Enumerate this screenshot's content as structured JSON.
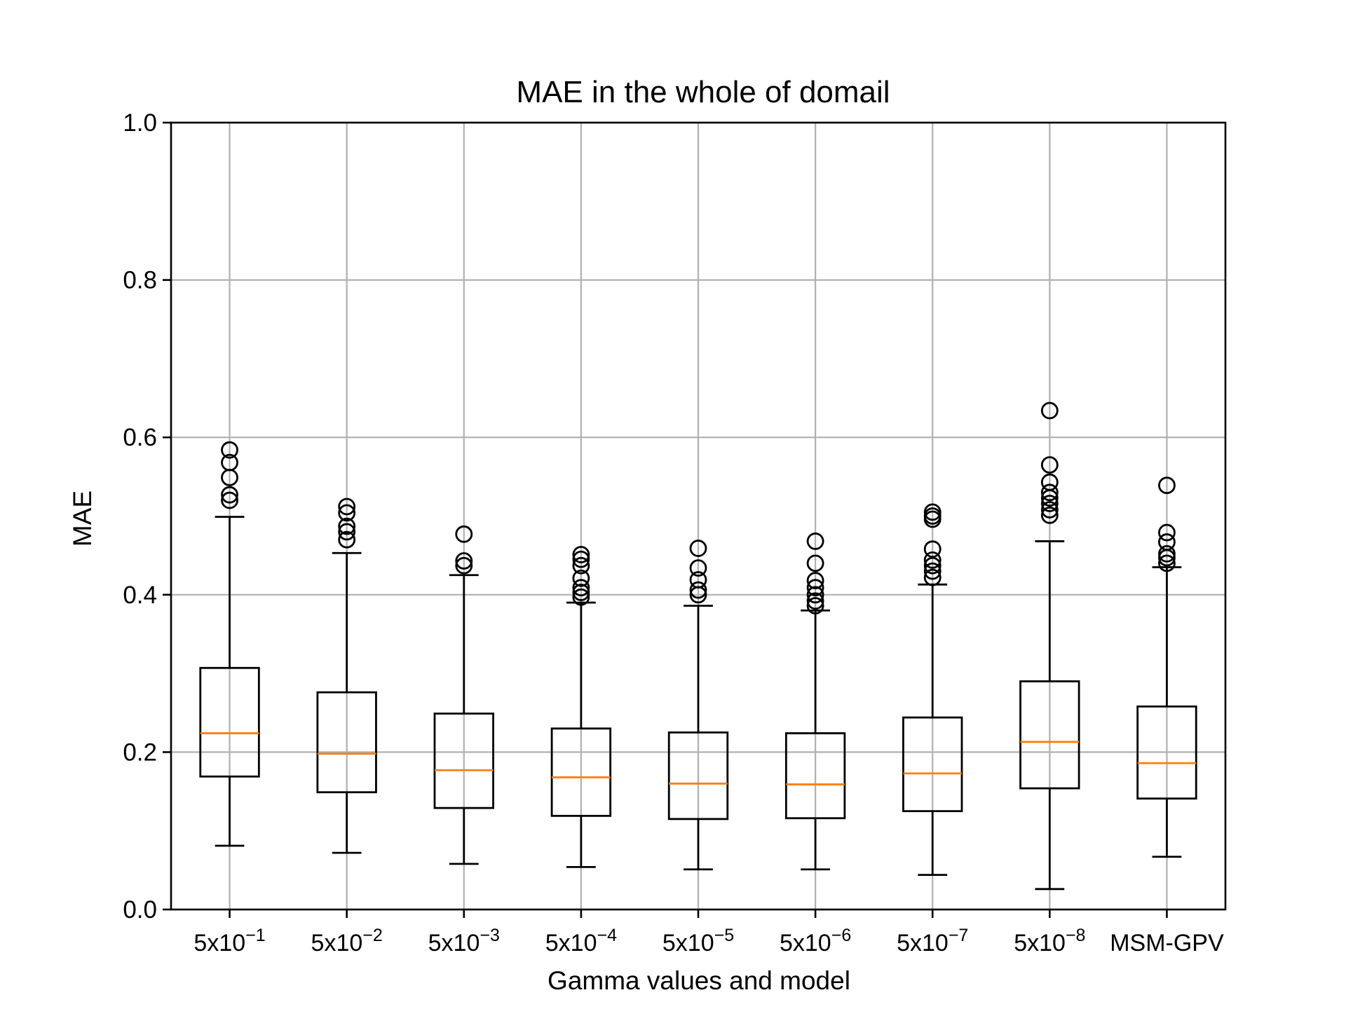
{
  "chart_data": {
    "type": "box",
    "title": "MAE in the whole of domail",
    "xlabel": "Gamma values and model",
    "ylabel": "MAE",
    "ylim": [
      0.0,
      1.0
    ],
    "yticks": [
      "0.0",
      "0.2",
      "0.4",
      "0.6",
      "0.8",
      "1.0"
    ],
    "grid": true,
    "categories": [
      {
        "base": "5x10",
        "exp": "−1"
      },
      {
        "base": "5x10",
        "exp": "−2"
      },
      {
        "base": "5x10",
        "exp": "−3"
      },
      {
        "base": "5x10",
        "exp": "−4"
      },
      {
        "base": "5x10",
        "exp": "−5"
      },
      {
        "base": "5x10",
        "exp": "−6"
      },
      {
        "base": "5x10",
        "exp": "−7"
      },
      {
        "base": "5x10",
        "exp": "−8"
      },
      {
        "base": "MSM-GPV",
        "exp": ""
      }
    ],
    "boxes": [
      {
        "whisker_low": 0.081,
        "q1": 0.169,
        "median": 0.224,
        "q3": 0.307,
        "whisker_high": 0.499,
        "outliers": [
          0.52,
          0.527,
          0.549,
          0.568,
          0.584
        ]
      },
      {
        "whisker_low": 0.072,
        "q1": 0.149,
        "median": 0.198,
        "q3": 0.276,
        "whisker_high": 0.453,
        "outliers": [
          0.47,
          0.48,
          0.487,
          0.504,
          0.512
        ]
      },
      {
        "whisker_low": 0.058,
        "q1": 0.129,
        "median": 0.177,
        "q3": 0.249,
        "whisker_high": 0.425,
        "outliers": [
          0.437,
          0.443,
          0.477
        ]
      },
      {
        "whisker_low": 0.054,
        "q1": 0.119,
        "median": 0.168,
        "q3": 0.23,
        "whisker_high": 0.39,
        "outliers": [
          0.397,
          0.403,
          0.409,
          0.421,
          0.437,
          0.445,
          0.451
        ]
      },
      {
        "whisker_low": 0.051,
        "q1": 0.115,
        "median": 0.16,
        "q3": 0.225,
        "whisker_high": 0.386,
        "outliers": [
          0.4,
          0.406,
          0.419,
          0.434,
          0.459
        ]
      },
      {
        "whisker_low": 0.051,
        "q1": 0.116,
        "median": 0.159,
        "q3": 0.224,
        "whisker_high": 0.38,
        "outliers": [
          0.386,
          0.392,
          0.4,
          0.409,
          0.418,
          0.44,
          0.468
        ]
      },
      {
        "whisker_low": 0.044,
        "q1": 0.125,
        "median": 0.173,
        "q3": 0.244,
        "whisker_high": 0.413,
        "outliers": [
          0.422,
          0.43,
          0.437,
          0.444,
          0.458,
          0.496,
          0.5,
          0.505
        ]
      },
      {
        "whisker_low": 0.026,
        "q1": 0.154,
        "median": 0.213,
        "q3": 0.29,
        "whisker_high": 0.468,
        "outliers": [
          0.501,
          0.508,
          0.516,
          0.523,
          0.53,
          0.543,
          0.565,
          0.634
        ]
      },
      {
        "whisker_low": 0.067,
        "q1": 0.141,
        "median": 0.186,
        "q3": 0.258,
        "whisker_high": 0.435,
        "outliers": [
          0.44,
          0.447,
          0.452,
          0.467,
          0.479,
          0.539
        ]
      }
    ]
  },
  "colors": {
    "box": "#000000",
    "median": "#ff7f0e",
    "grid": "#b0b0b0"
  }
}
